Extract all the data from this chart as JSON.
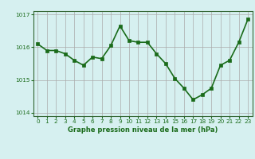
{
  "x": [
    0,
    1,
    2,
    3,
    4,
    5,
    6,
    7,
    8,
    9,
    10,
    11,
    12,
    13,
    14,
    15,
    16,
    17,
    18,
    19,
    20,
    21,
    22,
    23
  ],
  "y": [
    1016.1,
    1015.9,
    1015.9,
    1015.8,
    1015.6,
    1015.45,
    1015.7,
    1015.65,
    1016.05,
    1016.65,
    1016.2,
    1016.15,
    1016.15,
    1015.8,
    1015.5,
    1015.05,
    1014.75,
    1014.4,
    1014.55,
    1014.75,
    1015.45,
    1015.6,
    1016.15,
    1016.85
  ],
  "ylim": [
    1013.9,
    1017.1
  ],
  "yticks": [
    1014,
    1015,
    1016,
    1017
  ],
  "xticks": [
    0,
    1,
    2,
    3,
    4,
    5,
    6,
    7,
    8,
    9,
    10,
    11,
    12,
    13,
    14,
    15,
    16,
    17,
    18,
    19,
    20,
    21,
    22,
    23
  ],
  "line_color": "#1a6b1a",
  "marker_color": "#1a6b1a",
  "bg_color": "#d6f0f0",
  "grid_color": "#aaaaaa",
  "xlabel": "Graphe pression niveau de la mer (hPa)",
  "xlabel_color": "#1a6b1a",
  "tick_label_color": "#1a6b1a",
  "axis_color": "#336633",
  "line_width": 1.2,
  "marker_size": 3.0
}
